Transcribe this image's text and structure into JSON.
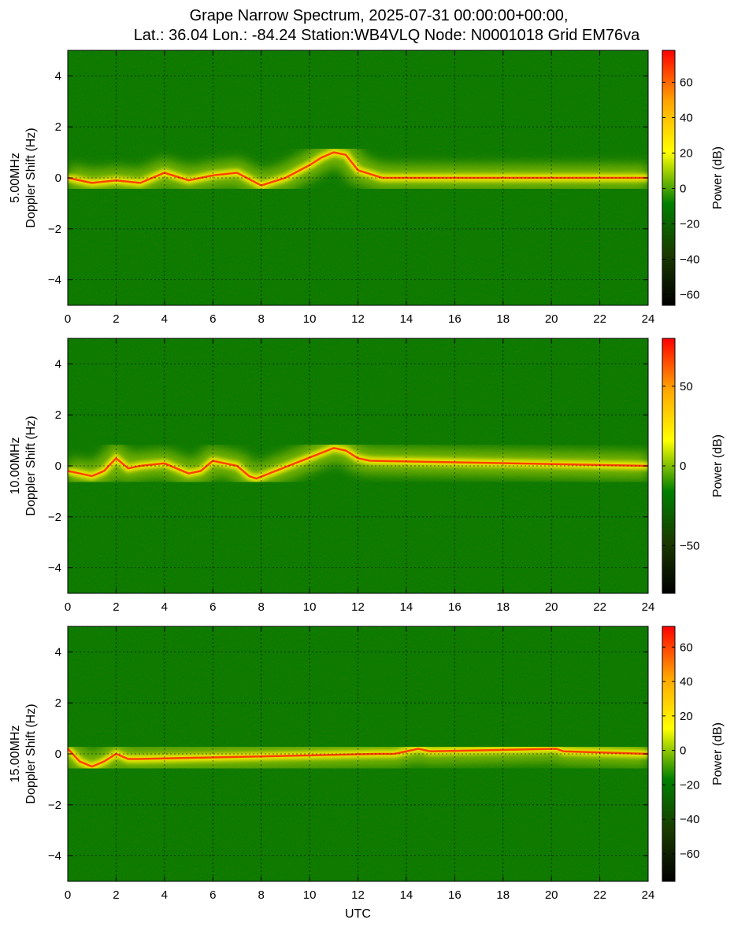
{
  "title": {
    "line1": "Grape Narrow Spectrum, 2025-07-31 00:00:00+00:00,",
    "line2": "Lat.: 36.04 Lon.: -84.24 Station:WB4VLQ Node: N0001018 Grid EM76va"
  },
  "colormap": [
    "#000000",
    "#1a3a00",
    "#008000",
    "#ffff00",
    "#ffa500",
    "#ff0000"
  ],
  "chart_data": [
    {
      "type": "heatmap",
      "panel": "5.00MHz",
      "ylabel_line1": "5.00MHz",
      "ylabel_line2": "Doppler Shift (Hz)",
      "xlabel": "",
      "x_ticks": [
        0,
        2,
        4,
        6,
        8,
        10,
        12,
        14,
        16,
        18,
        20,
        22,
        24
      ],
      "y_ticks": [
        -4,
        -2,
        0,
        2,
        4
      ],
      "xlim": [
        0,
        24
      ],
      "ylim": [
        -5,
        5
      ],
      "grid": true,
      "colorbar": {
        "label": "Power (dB)",
        "range": [
          -66,
          78
        ],
        "ticks": [
          -60,
          -40,
          -20,
          0,
          20,
          40,
          60
        ]
      },
      "signal_trace": {
        "utc": [
          0,
          1,
          2,
          3,
          4,
          5,
          6,
          7,
          8,
          9,
          10,
          10.5,
          11,
          11.5,
          12,
          13,
          24
        ],
        "doppler_hz": [
          0.0,
          -0.2,
          -0.1,
          -0.2,
          0.2,
          -0.1,
          0.1,
          0.2,
          -0.3,
          0.0,
          0.5,
          0.8,
          1.0,
          0.9,
          0.3,
          0.0,
          0.0
        ]
      }
    },
    {
      "type": "heatmap",
      "panel": "10.00MHz",
      "ylabel_line1": "10.00MHz",
      "ylabel_line2": "Doppler Shift (Hz)",
      "xlabel": "",
      "x_ticks": [
        0,
        2,
        4,
        6,
        8,
        10,
        12,
        14,
        16,
        18,
        20,
        22,
        24
      ],
      "y_ticks": [
        -4,
        -2,
        0,
        2,
        4
      ],
      "xlim": [
        0,
        24
      ],
      "ylim": [
        -5,
        5
      ],
      "grid": true,
      "colorbar": {
        "label": "Power (dB)",
        "range": [
          -80,
          80
        ],
        "ticks": [
          -50,
          0,
          50
        ]
      },
      "signal_trace": {
        "utc": [
          0,
          0.5,
          1,
          1.5,
          2,
          2.5,
          3,
          4,
          5,
          5.5,
          6,
          6.5,
          7,
          7.5,
          7.8,
          11,
          11.5,
          12,
          12.5,
          24
        ],
        "doppler_hz": [
          -0.2,
          -0.3,
          -0.4,
          -0.2,
          0.3,
          -0.1,
          0.0,
          0.1,
          -0.3,
          -0.2,
          0.2,
          0.1,
          0.0,
          -0.4,
          -0.5,
          0.7,
          0.6,
          0.3,
          0.2,
          0.0
        ]
      }
    },
    {
      "type": "heatmap",
      "panel": "15.00MHz",
      "ylabel_line1": "15.00MHz",
      "ylabel_line2": "Doppler Shift (Hz)",
      "xlabel": "UTC",
      "x_ticks": [
        0,
        2,
        4,
        6,
        8,
        10,
        12,
        14,
        16,
        18,
        20,
        22,
        24
      ],
      "y_ticks": [
        -4,
        -2,
        0,
        2,
        4
      ],
      "xlim": [
        0,
        24
      ],
      "ylim": [
        -5,
        5
      ],
      "grid": true,
      "colorbar": {
        "label": "Power (dB)",
        "range": [
          -76,
          72
        ],
        "ticks": [
          -60,
          -40,
          -20,
          0,
          20,
          40,
          60
        ]
      },
      "signal_trace": {
        "utc": [
          0,
          0.5,
          1,
          1.5,
          2,
          2.5,
          2.9,
          12.8,
          13.5,
          14.5,
          15,
          20.2,
          20.5,
          24
        ],
        "doppler_hz": [
          0.2,
          -0.3,
          -0.5,
          -0.3,
          0.0,
          -0.2,
          -0.2,
          0.0,
          0.0,
          0.2,
          0.1,
          0.2,
          0.1,
          0.0
        ]
      }
    }
  ]
}
